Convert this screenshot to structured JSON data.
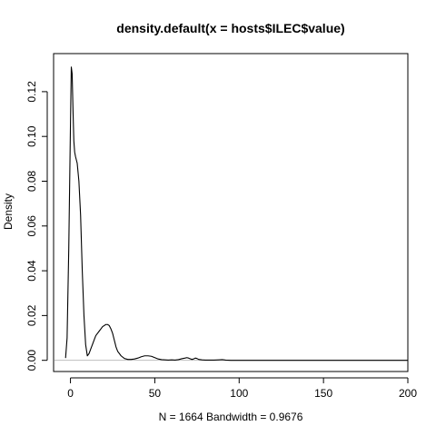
{
  "chart_data": {
    "type": "line",
    "title": "density.default(x = hosts$ILEC$value)",
    "xlabel": "N = 1664   Bandwidth = 0.9676",
    "ylabel": "Density",
    "xlim": [
      -10,
      200
    ],
    "ylim": [
      -0.005,
      0.137
    ],
    "x_ticks": [
      0,
      50,
      100,
      150,
      200
    ],
    "y_ticks": [
      0.0,
      0.02,
      0.04,
      0.06,
      0.08,
      0.1,
      0.12
    ],
    "x_tick_labels": [
      "0",
      "50",
      "100",
      "150",
      "200"
    ],
    "y_tick_labels": [
      "0.00",
      "0.02",
      "0.04",
      "0.06",
      "0.08",
      "0.10",
      "0.12"
    ],
    "baseline": 0,
    "line_color": "#000000",
    "baseline_color": "#bebebe",
    "grid": false,
    "legend": "none",
    "series": [
      {
        "x": [
          -2.9,
          -2.0,
          -1.0,
          0.0,
          0.5,
          1.0,
          1.5,
          2.0,
          2.5,
          3.0,
          4.0,
          5.0,
          6.0,
          7.0,
          8.0,
          9.0,
          10.0,
          11.0,
          12.0,
          13.0,
          14.0,
          15.0,
          16.0,
          17.0,
          18.0,
          19.0,
          20.0,
          21.0,
          22.0,
          23.0,
          24.0,
          25.0,
          26.0,
          27.0,
          28.0,
          30.0,
          32.0,
          34.0,
          36.0,
          38.0,
          40.0,
          42.0,
          44.0,
          46.0,
          48.0,
          50.0,
          52.0,
          54.0,
          56.0,
          58.0,
          60.0,
          62.0,
          64.0,
          66.0,
          68.0,
          69.0,
          70.0,
          71.0,
          72.0,
          73.0,
          74.0,
          75.0,
          76.0,
          78.0,
          80.0,
          85.0,
          88.0,
          90.0,
          92.0,
          95.0,
          100.0,
          120.0,
          150.0,
          180.0,
          200.0
        ],
        "y": [
          0.001,
          0.01,
          0.05,
          0.105,
          0.131,
          0.128,
          0.112,
          0.098,
          0.093,
          0.091,
          0.088,
          0.08,
          0.065,
          0.04,
          0.02,
          0.007,
          0.002,
          0.003,
          0.005,
          0.007,
          0.009,
          0.011,
          0.012,
          0.013,
          0.014,
          0.015,
          0.0155,
          0.016,
          0.016,
          0.0155,
          0.014,
          0.012,
          0.009,
          0.006,
          0.004,
          0.002,
          0.0008,
          0.0004,
          0.0004,
          0.0006,
          0.001,
          0.0016,
          0.002,
          0.002,
          0.0018,
          0.0012,
          0.0006,
          0.0003,
          0.0002,
          0.0001,
          0.0002,
          0.0001,
          0.0003,
          0.0007,
          0.001,
          0.0012,
          0.001,
          0.0007,
          0.0004,
          0.0006,
          0.001,
          0.0008,
          0.0004,
          0.0002,
          0.0001,
          0.0001,
          0.0002,
          0.0003,
          0.0001,
          0.0,
          0.0,
          0.0,
          0.0,
          0.0,
          0.0
        ]
      }
    ]
  }
}
